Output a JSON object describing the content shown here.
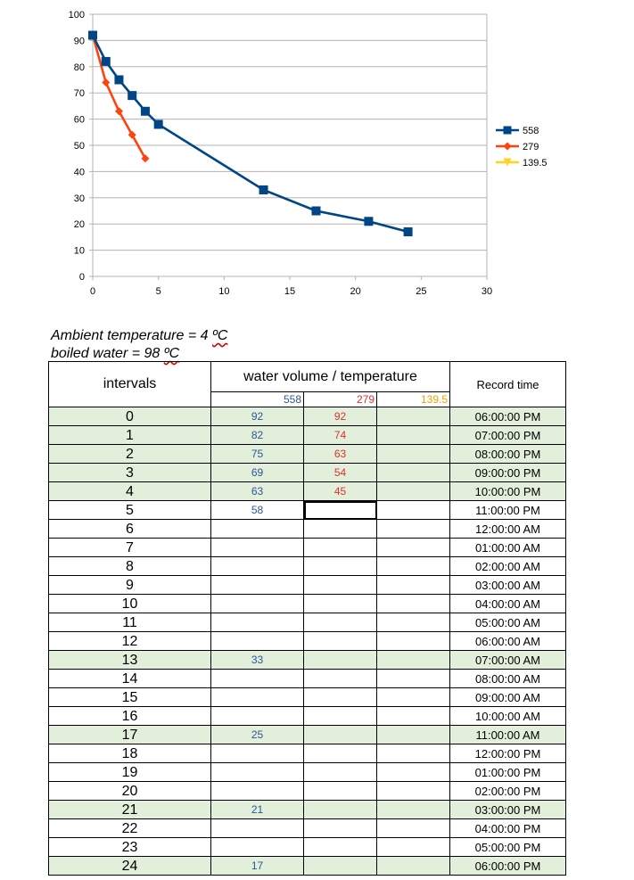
{
  "chart_data": {
    "type": "line",
    "xlim": [
      0,
      30
    ],
    "ylim": [
      0,
      100
    ],
    "xticks": [
      0,
      5,
      10,
      15,
      20,
      25,
      30
    ],
    "yticks": [
      0,
      10,
      20,
      30,
      40,
      50,
      60,
      70,
      80,
      90,
      100
    ],
    "grid": true,
    "legend_position": "right",
    "series": [
      {
        "name": "558",
        "color": "#004586",
        "marker": "square",
        "x": [
          0,
          1,
          2,
          3,
          4,
          5,
          13,
          17,
          21,
          24
        ],
        "y": [
          92,
          82,
          75,
          69,
          63,
          58,
          33,
          25,
          21,
          17
        ]
      },
      {
        "name": "279",
        "color": "#ff420e",
        "marker": "diamond",
        "x": [
          0,
          1,
          2,
          3,
          4
        ],
        "y": [
          92,
          74,
          63,
          54,
          45
        ]
      },
      {
        "name": "139.5",
        "color": "#ffd320",
        "marker": "triangle-down",
        "x": [],
        "y": []
      }
    ]
  },
  "notes": {
    "ambient_prefix": "Ambient temperature = 4 ",
    "ambient_unit": "ºC",
    "boiled_prefix": "boiled water = 98 ",
    "boiled_unit": "ºC"
  },
  "table": {
    "header_intervals": "intervals",
    "header_volume": "water volume / temperature",
    "header_record": "Record time",
    "vol_558": "558",
    "vol_279": "279",
    "vol_139": "139.5",
    "rows": [
      {
        "interval": "0",
        "v558": "92",
        "v279": "92",
        "v139": "",
        "time": "06:00:00 PM",
        "hl": true
      },
      {
        "interval": "1",
        "v558": "82",
        "v279": "74",
        "v139": "",
        "time": "07:00:00 PM",
        "hl": true
      },
      {
        "interval": "2",
        "v558": "75",
        "v279": "63",
        "v139": "",
        "time": "08:00:00 PM",
        "hl": true
      },
      {
        "interval": "3",
        "v558": "69",
        "v279": "54",
        "v139": "",
        "time": "09:00:00 PM",
        "hl": true
      },
      {
        "interval": "4",
        "v558": "63",
        "v279": "45",
        "v139": "",
        "time": "10:00:00 PM",
        "hl": true
      },
      {
        "interval": "5",
        "v558": "58",
        "v279": "",
        "v139": "",
        "time": "11:00:00 PM",
        "hl": false
      },
      {
        "interval": "6",
        "v558": "",
        "v279": "",
        "v139": "",
        "time": "12:00:00 AM",
        "hl": false
      },
      {
        "interval": "7",
        "v558": "",
        "v279": "",
        "v139": "",
        "time": "01:00:00 AM",
        "hl": false
      },
      {
        "interval": "8",
        "v558": "",
        "v279": "",
        "v139": "",
        "time": "02:00:00 AM",
        "hl": false
      },
      {
        "interval": "9",
        "v558": "",
        "v279": "",
        "v139": "",
        "time": "03:00:00 AM",
        "hl": false
      },
      {
        "interval": "10",
        "v558": "",
        "v279": "",
        "v139": "",
        "time": "04:00:00 AM",
        "hl": false
      },
      {
        "interval": "11",
        "v558": "",
        "v279": "",
        "v139": "",
        "time": "05:00:00 AM",
        "hl": false
      },
      {
        "interval": "12",
        "v558": "",
        "v279": "",
        "v139": "",
        "time": "06:00:00 AM",
        "hl": false
      },
      {
        "interval": "13",
        "v558": "33",
        "v279": "",
        "v139": "",
        "time": "07:00:00 AM",
        "hl": true
      },
      {
        "interval": "14",
        "v558": "",
        "v279": "",
        "v139": "",
        "time": "08:00:00 AM",
        "hl": false
      },
      {
        "interval": "15",
        "v558": "",
        "v279": "",
        "v139": "",
        "time": "09:00:00 AM",
        "hl": false
      },
      {
        "interval": "16",
        "v558": "",
        "v279": "",
        "v139": "",
        "time": "10:00:00 AM",
        "hl": false
      },
      {
        "interval": "17",
        "v558": "25",
        "v279": "",
        "v139": "",
        "time": "11:00:00 AM",
        "hl": true
      },
      {
        "interval": "18",
        "v558": "",
        "v279": "",
        "v139": "",
        "time": "12:00:00 PM",
        "hl": false
      },
      {
        "interval": "19",
        "v558": "",
        "v279": "",
        "v139": "",
        "time": "01:00:00 PM",
        "hl": false
      },
      {
        "interval": "20",
        "v558": "",
        "v279": "",
        "v139": "",
        "time": "02:00:00 PM",
        "hl": false
      },
      {
        "interval": "21",
        "v558": "21",
        "v279": "",
        "v139": "",
        "time": "03:00:00 PM",
        "hl": true
      },
      {
        "interval": "22",
        "v558": "",
        "v279": "",
        "v139": "",
        "time": "04:00:00 PM",
        "hl": false
      },
      {
        "interval": "23",
        "v558": "",
        "v279": "",
        "v139": "",
        "time": "05:00:00 PM",
        "hl": false
      },
      {
        "interval": "24",
        "v558": "17",
        "v279": "",
        "v139": "",
        "time": "06:00:00 PM",
        "hl": true
      }
    ]
  }
}
